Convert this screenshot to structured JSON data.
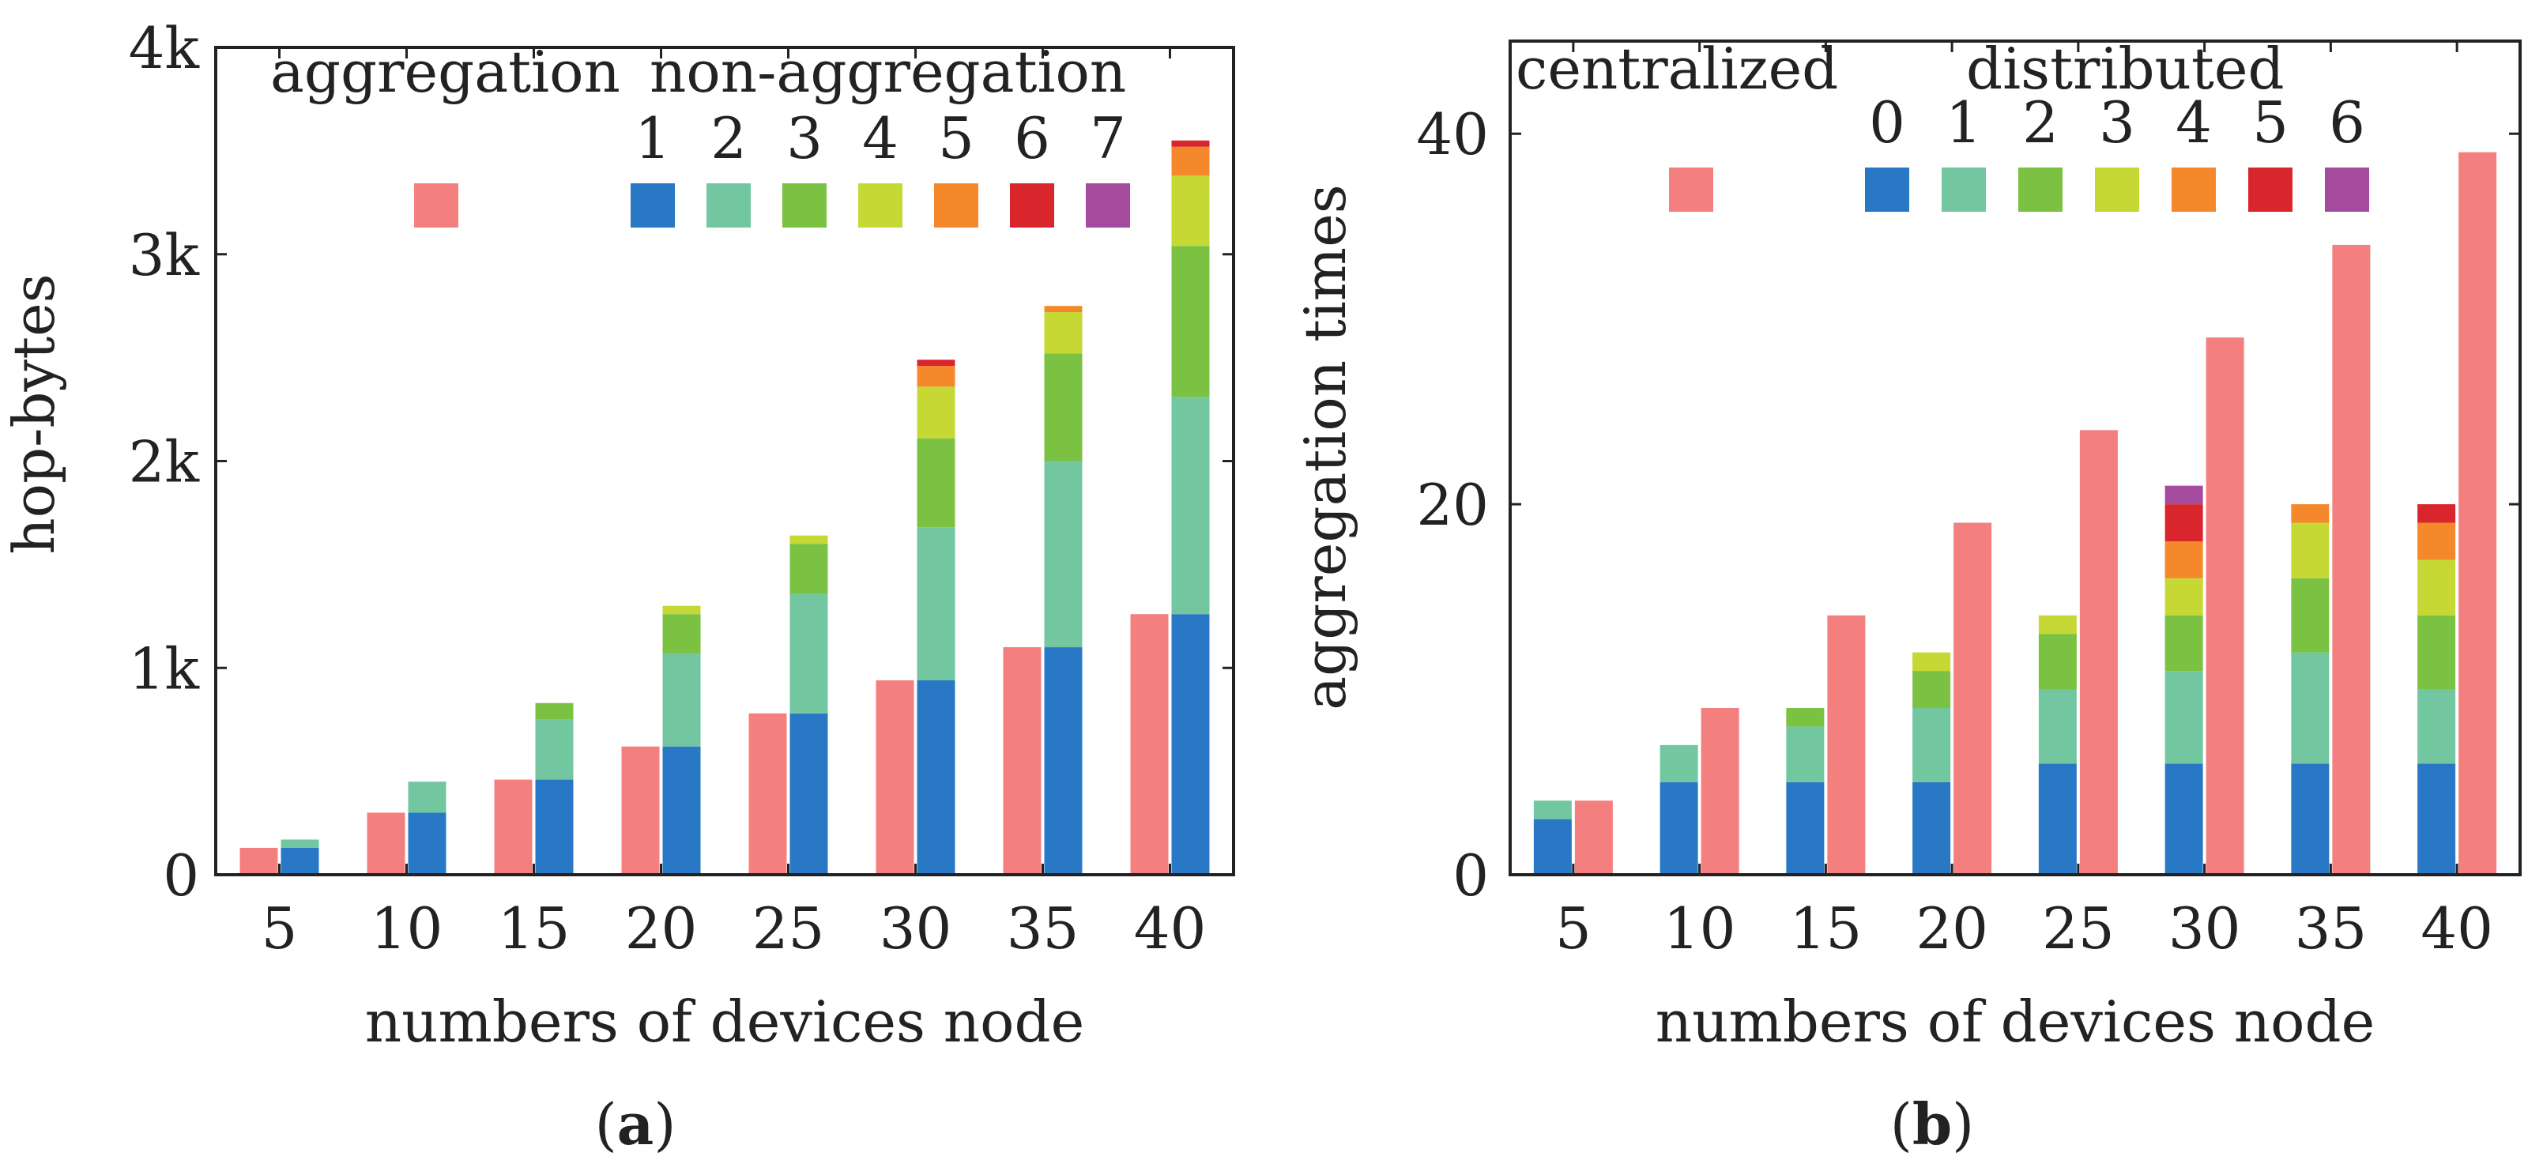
{
  "colors": {
    "aggregation": "#f47f7f",
    "series": [
      "#2878c5",
      "#72c7a0",
      "#7bc142",
      "#c5d834",
      "#f4882b",
      "#d9262d",
      "#a44b9d"
    ]
  },
  "chart_data": [
    {
      "id": "a",
      "type": "bar",
      "caption_letter": "a",
      "xlabel": "numbers of devices node",
      "ylabel": "hop-bytes",
      "ylim": [
        0,
        4000
      ],
      "yticks": [
        0,
        1000,
        2000,
        3000,
        4000
      ],
      "ytick_labels": [
        "0",
        "1k",
        "2k",
        "3k",
        "4k"
      ],
      "categories": [
        "5",
        "10",
        "15",
        "20",
        "25",
        "30",
        "35",
        "40"
      ],
      "single_series": {
        "name": "aggregation",
        "values": [
          130,
          300,
          460,
          620,
          780,
          940,
          1100,
          1260
        ]
      },
      "stack_group_label": "non-aggregation",
      "stack_series": [
        {
          "name": "1",
          "values": [
            130,
            300,
            460,
            620,
            780,
            940,
            1100,
            1260
          ]
        },
        {
          "name": "2",
          "values": [
            40,
            150,
            290,
            450,
            580,
            740,
            900,
            1050
          ]
        },
        {
          "name": "3",
          "values": [
            0,
            0,
            80,
            190,
            240,
            430,
            520,
            730
          ]
        },
        {
          "name": "4",
          "values": [
            0,
            0,
            0,
            40,
            40,
            250,
            200,
            340
          ]
        },
        {
          "name": "5",
          "values": [
            0,
            0,
            0,
            0,
            0,
            100,
            30,
            140
          ]
        },
        {
          "name": "6",
          "values": [
            0,
            0,
            0,
            0,
            0,
            30,
            0,
            30
          ]
        },
        {
          "name": "7",
          "values": [
            0,
            0,
            0,
            0,
            0,
            0,
            0,
            0
          ]
        }
      ],
      "single_first": true
    },
    {
      "id": "b",
      "type": "bar",
      "caption_letter": "b",
      "xlabel": "numbers of devices node",
      "ylabel": "aggregation times",
      "ylim": [
        0,
        45
      ],
      "yticks": [
        0,
        20,
        40
      ],
      "ytick_labels": [
        "0",
        "20",
        "40"
      ],
      "categories": [
        "5",
        "10",
        "15",
        "20",
        "25",
        "30",
        "35",
        "40"
      ],
      "single_series": {
        "name": "centralized",
        "values": [
          4,
          9,
          14,
          19,
          24,
          29,
          34,
          39
        ]
      },
      "stack_group_label": "distributed",
      "stack_series": [
        {
          "name": "0",
          "values": [
            3,
            5,
            5,
            5,
            6,
            6,
            6,
            6
          ]
        },
        {
          "name": "1",
          "values": [
            1,
            2,
            3,
            4,
            4,
            5,
            6,
            4
          ]
        },
        {
          "name": "2",
          "values": [
            0,
            0,
            1,
            2,
            3,
            3,
            4,
            4
          ]
        },
        {
          "name": "3",
          "values": [
            0,
            0,
            0,
            1,
            1,
            2,
            3,
            3
          ]
        },
        {
          "name": "4",
          "values": [
            0,
            0,
            0,
            0,
            0,
            2,
            1,
            2
          ]
        },
        {
          "name": "5",
          "values": [
            0,
            0,
            0,
            0,
            0,
            2,
            0,
            1
          ]
        },
        {
          "name": "6",
          "values": [
            0,
            0,
            0,
            0,
            0,
            1,
            0,
            0
          ]
        }
      ],
      "single_first": false
    }
  ]
}
